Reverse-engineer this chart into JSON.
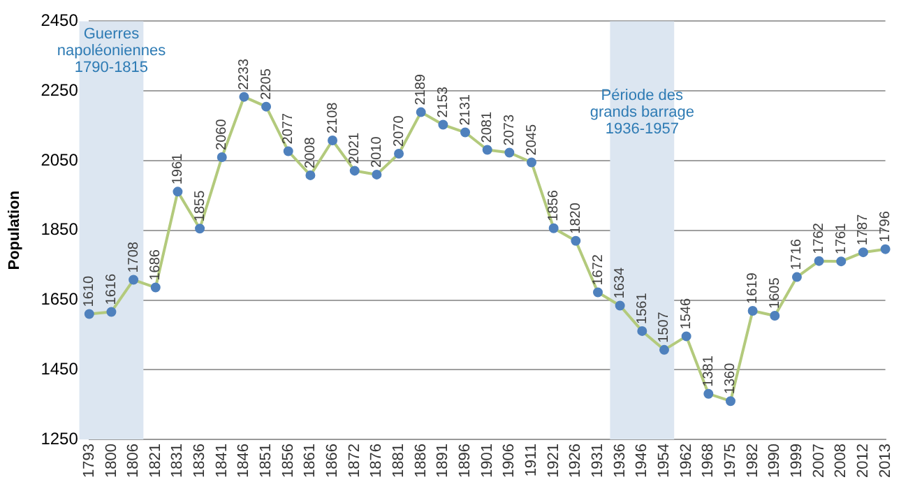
{
  "chart_data": {
    "type": "line",
    "ylabel": "Population",
    "categories": [
      "1793",
      "1800",
      "1806",
      "1821",
      "1831",
      "1836",
      "1841",
      "1846",
      "1851",
      "1856",
      "1861",
      "1866",
      "1872",
      "1876",
      "1881",
      "1886",
      "1891",
      "1896",
      "1901",
      "1906",
      "1911",
      "1921",
      "1926",
      "1931",
      "1936",
      "1946",
      "1954",
      "1962",
      "1968",
      "1975",
      "1982",
      "1990",
      "1999",
      "2007",
      "2008",
      "2012",
      "2013"
    ],
    "series": [
      {
        "color": "#b3ca7c",
        "values": [
          1610,
          1616,
          1708,
          1686,
          1961,
          1855,
          2060,
          2233,
          2205,
          2077,
          2008,
          2108,
          2021,
          2010,
          2070,
          2189,
          2153,
          2131,
          2081,
          2073,
          2045,
          1856,
          1820,
          1672,
          1634,
          1561,
          1507,
          1546,
          1381,
          1360,
          1619,
          1605,
          1716,
          1762,
          1761,
          1787,
          1796
        ]
      }
    ],
    "ylim": [
      1250,
      2450
    ],
    "yticks": [
      1250,
      1450,
      1650,
      1850,
      2050,
      2250,
      2450
    ],
    "grid": "y",
    "legend": false,
    "marker": "circle",
    "data_labels": true,
    "bands": [
      {
        "axis": "x",
        "from": "1793",
        "to": "1806",
        "label": "Guerres\nnapoléoniennes\n1790-1815",
        "color": "#dce6f1"
      },
      {
        "axis": "x",
        "from": "1936",
        "to": "1954",
        "label": "Période des\ngrands barrage\n1936-1957",
        "color": "#dce6f1"
      }
    ]
  }
}
